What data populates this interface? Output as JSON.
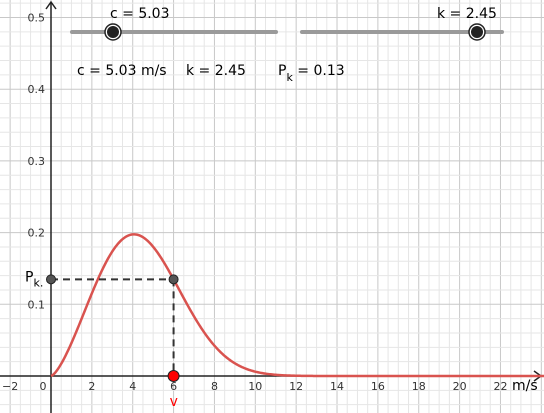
{
  "sliders": {
    "c": {
      "label": "c = 5.03",
      "value": 5.03,
      "min": 0,
      "max": 25
    },
    "k": {
      "label": "k = 2.45",
      "value": 2.45,
      "min": 0,
      "max": 2.8
    }
  },
  "info": {
    "speed": "c = 5.03 m/s",
    "shape": "k = 2.45",
    "prob_base": "P",
    "prob_sub": "k",
    "prob_value": " = 0.13"
  },
  "axes": {
    "x_unit": "m/s",
    "x_ticks": [
      "−2",
      "0",
      "2",
      "4",
      "6",
      "8",
      "10",
      "12",
      "14",
      "16",
      "18",
      "20",
      "22"
    ],
    "y_ticks": [
      "0.1",
      "0.2",
      "0.3",
      "0.4",
      "0.5"
    ],
    "y_marker_base": "P",
    "y_marker_sub": "k."
  },
  "point": {
    "label": "v",
    "v": 6,
    "color": "#ff0000"
  },
  "colors": {
    "curve": "#d9534f",
    "grid_minor": "#e6e6e6",
    "grid_major": "#c8c8c8"
  }
}
